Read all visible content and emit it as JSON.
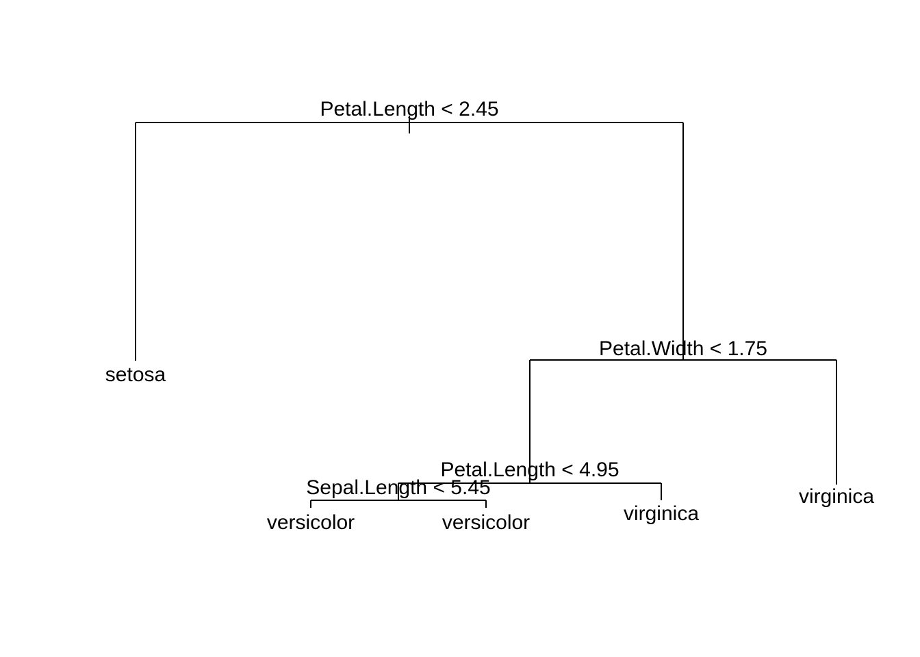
{
  "tree": {
    "splits": {
      "root": "Petal.Length < 2.45",
      "right": "Petal.Width < 1.75",
      "right_left": "Petal.Length < 4.95",
      "right_left_left": "Sepal.Length < 5.45"
    },
    "leaves": {
      "l1": "setosa",
      "l2": "versicolor",
      "l3": "versicolor",
      "l4": "virginica",
      "l5": "virginica"
    }
  }
}
